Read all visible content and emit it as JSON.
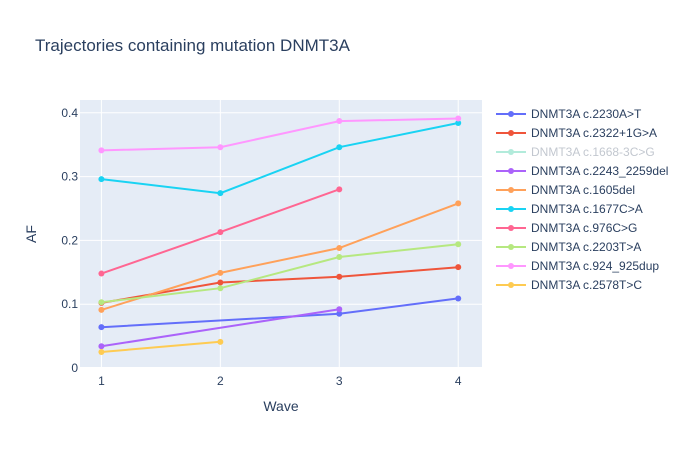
{
  "chart_data": {
    "type": "line",
    "title": "Trajectories containing mutation DNMT3A",
    "xlabel": "Wave",
    "ylabel": "AF",
    "x_ticks": [
      1,
      2,
      3,
      4
    ],
    "y_ticks": [
      0,
      0.1,
      0.2,
      0.3,
      0.4
    ],
    "y_tick_labels": [
      "0",
      "0.1",
      "0.2",
      "0.3",
      "0.4"
    ],
    "xlim": [
      0.82,
      4.2
    ],
    "ylim": [
      0,
      0.42
    ],
    "grid": true,
    "legend_position": "right",
    "plot_background": "#e5ecf6",
    "series": [
      {
        "name": "DNMT3A c.2230A>T",
        "color": "#636efa",
        "x": [
          1,
          3,
          4
        ],
        "y": [
          0.064,
          0.085,
          0.109
        ]
      },
      {
        "name": "DNMT3A c.2322+1G>A",
        "color": "#ef553b",
        "x": [
          1,
          2,
          3,
          4
        ],
        "y": [
          0.102,
          0.134,
          0.143,
          0.158
        ]
      },
      {
        "name": "DNMT3A c.1668-3C>G",
        "color": "#7fdfc4",
        "legend_faded": true,
        "x": [],
        "y": []
      },
      {
        "name": "DNMT3A c.2243_2259del",
        "color": "#ab63fa",
        "x": [
          1,
          3
        ],
        "y": [
          0.034,
          0.092
        ]
      },
      {
        "name": "DNMT3A c.1605del",
        "color": "#ffa15a",
        "x": [
          1,
          2,
          3,
          4
        ],
        "y": [
          0.091,
          0.149,
          0.188,
          0.258
        ]
      },
      {
        "name": "DNMT3A c.1677C>A",
        "color": "#19d3f3",
        "x": [
          1,
          2,
          3,
          4
        ],
        "y": [
          0.296,
          0.274,
          0.346,
          0.384
        ]
      },
      {
        "name": "DNMT3A c.976C>G",
        "color": "#ff6692",
        "x": [
          1,
          2,
          3
        ],
        "y": [
          0.148,
          0.213,
          0.28
        ]
      },
      {
        "name": "DNMT3A c.2203T>A",
        "color": "#b6e880",
        "x": [
          1,
          2,
          3,
          4
        ],
        "y": [
          0.103,
          0.125,
          0.174,
          0.194
        ]
      },
      {
        "name": "DNMT3A c.924_925dup",
        "color": "#ff97ff",
        "x": [
          1,
          2,
          3,
          4
        ],
        "y": [
          0.341,
          0.346,
          0.387,
          0.391
        ]
      },
      {
        "name": "DNMT3A c.2578T>C",
        "color": "#fecb52",
        "x": [
          1,
          2
        ],
        "y": [
          0.025,
          0.041
        ]
      }
    ]
  }
}
